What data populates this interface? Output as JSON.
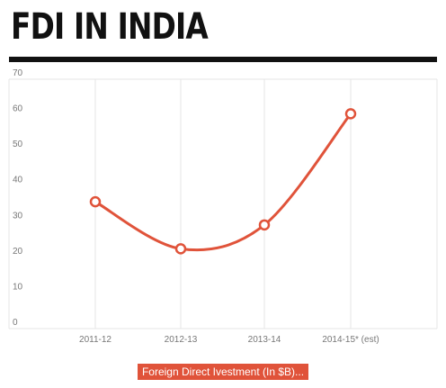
{
  "header": {
    "title": "FDI IN INDIA"
  },
  "chart_data": {
    "type": "line",
    "title": "FDI IN INDIA",
    "categories": [
      "2011-12",
      "2012-13",
      "2013-14",
      "2014-15* (est)"
    ],
    "series": [
      {
        "name": "Foreign Direct Ivestment (In $B)...",
        "values": [
          35.6,
          22.4,
          29.1,
          60.3
        ],
        "color": "#e0533a"
      }
    ],
    "yticks": [
      "0",
      "10",
      "20",
      "30",
      "40",
      "50",
      "60",
      "70"
    ],
    "ylim": [
      0,
      70
    ],
    "grid": "vertical",
    "legend_position": "bottom-center",
    "colors": {
      "line": "#e0533a",
      "grid": "#e4e4e4",
      "axis_text": "#777777",
      "title": "#111111"
    }
  }
}
